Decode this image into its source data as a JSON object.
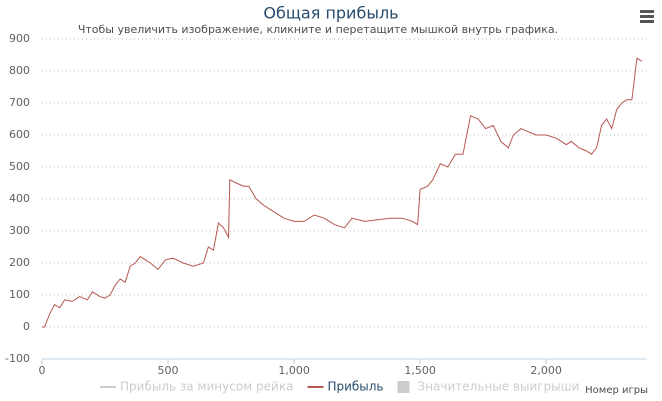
{
  "chart_data": {
    "type": "line",
    "title": "Общая прибыль",
    "subtitle": "Чтобы увеличить изображение, кликните и перетащите мышкой внутрь графика.",
    "x_label": "Номер игры",
    "x": [
      0,
      10,
      30,
      50,
      70,
      90,
      120,
      150,
      180,
      200,
      230,
      250,
      270,
      290,
      310,
      330,
      350,
      370,
      390,
      410,
      430,
      460,
      490,
      520,
      560,
      600,
      640,
      660,
      680,
      700,
      720,
      740,
      745,
      770,
      800,
      820,
      850,
      880,
      920,
      960,
      1000,
      1040,
      1080,
      1120,
      1160,
      1200,
      1230,
      1280,
      1330,
      1380,
      1430,
      1470,
      1490,
      1500,
      1530,
      1550,
      1580,
      1610,
      1640,
      1670,
      1700,
      1730,
      1760,
      1790,
      1820,
      1850,
      1870,
      1900,
      1930,
      1960,
      2000,
      2040,
      2080,
      2100,
      2130,
      2160,
      2180,
      2200,
      2220,
      2240,
      2260,
      2280,
      2300,
      2320,
      2340,
      2360,
      2380
    ],
    "series": [
      {
        "name": "Прибыль за минусом рейка",
        "color": "#cccccc",
        "visible": false
      },
      {
        "name": "Прибыль",
        "color": "#b5574f",
        "visible": true,
        "values": [
          0,
          0,
          40,
          70,
          60,
          85,
          80,
          95,
          85,
          110,
          95,
          90,
          100,
          130,
          150,
          140,
          190,
          200,
          220,
          210,
          200,
          180,
          210,
          215,
          200,
          190,
          200,
          250,
          240,
          325,
          310,
          280,
          460,
          450,
          440,
          440,
          400,
          380,
          360,
          340,
          330,
          330,
          350,
          340,
          320,
          310,
          340,
          330,
          335,
          340,
          340,
          330,
          320,
          430,
          440,
          460,
          510,
          500,
          540,
          540,
          660,
          650,
          620,
          630,
          580,
          560,
          600,
          620,
          610,
          600,
          600,
          590,
          570,
          580,
          560,
          550,
          540,
          560,
          630,
          650,
          620,
          680,
          700,
          710,
          710,
          840,
          830
        ]
      },
      {
        "name": "Значительные выигрыши",
        "color": "#cccccc",
        "visible": false,
        "symbol": "box"
      }
    ],
    "xlim": [
      0,
      2400
    ],
    "xticks": [
      0,
      500,
      {
        "value": 1000,
        "label": "1,000"
      },
      {
        "value": 1500,
        "label": "1,500"
      },
      {
        "value": 2000,
        "label": "2,000"
      }
    ],
    "ylim": [
      -100,
      900
    ],
    "yticks": [
      -100,
      0,
      100,
      200,
      300,
      400,
      500,
      600,
      700,
      800,
      900
    ],
    "grid": true
  }
}
